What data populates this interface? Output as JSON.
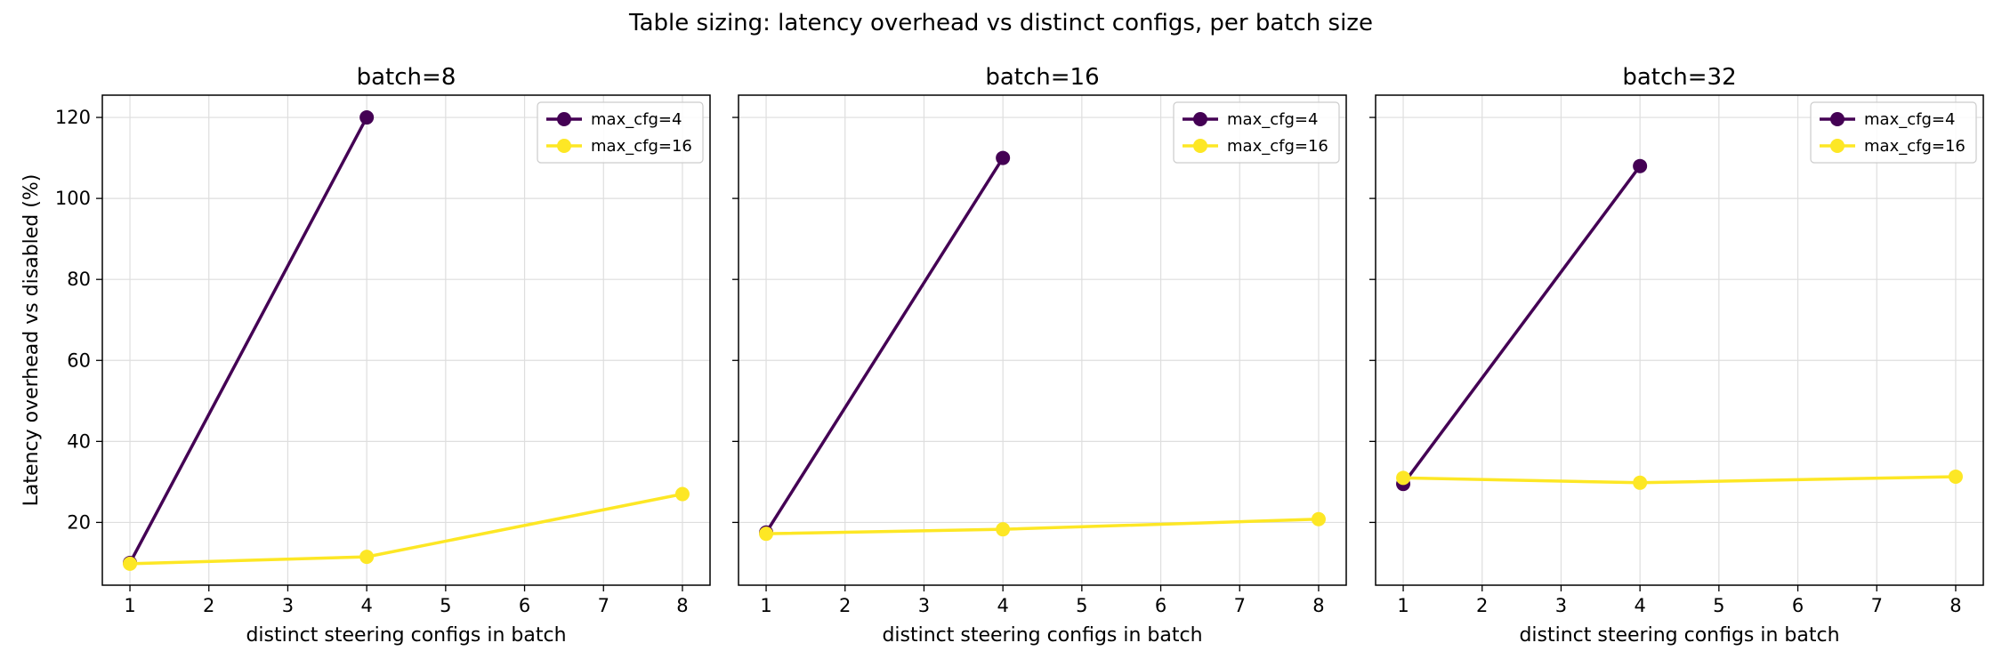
{
  "title": "Table sizing: latency overhead vs distinct configs, per batch size",
  "chart_data": [
    {
      "type": "line",
      "title": "batch=8",
      "xlabel": "distinct steering configs in batch",
      "ylabel": "Latency overhead vs disabled (%)",
      "xlim": [
        0.65,
        8.35
      ],
      "ylim": [
        4.5,
        125.5
      ],
      "xticks": [
        1,
        2,
        3,
        4,
        5,
        6,
        7,
        8
      ],
      "yticks": [
        20,
        40,
        60,
        80,
        100,
        120
      ],
      "grid": true,
      "legend_position": "top-right",
      "series": [
        {
          "name": "max_cfg=4",
          "color": "#440154",
          "x": [
            1,
            4
          ],
          "y": [
            10.0,
            120.0
          ]
        },
        {
          "name": "max_cfg=16",
          "color": "#fde725",
          "x": [
            1,
            4,
            8
          ],
          "y": [
            9.8,
            11.5,
            27.0
          ]
        }
      ]
    },
    {
      "type": "line",
      "title": "batch=16",
      "xlabel": "distinct steering configs in batch",
      "ylabel": "",
      "xlim": [
        0.65,
        8.35
      ],
      "ylim": [
        4.5,
        125.5
      ],
      "xticks": [
        1,
        2,
        3,
        4,
        5,
        6,
        7,
        8
      ],
      "yticks": [
        20,
        40,
        60,
        80,
        100,
        120
      ],
      "grid": true,
      "legend_position": "top-right",
      "series": [
        {
          "name": "max_cfg=4",
          "color": "#440154",
          "x": [
            1,
            4
          ],
          "y": [
            17.5,
            110.0
          ]
        },
        {
          "name": "max_cfg=16",
          "color": "#fde725",
          "x": [
            1,
            4,
            8
          ],
          "y": [
            17.2,
            18.3,
            20.8
          ]
        }
      ]
    },
    {
      "type": "line",
      "title": "batch=32",
      "xlabel": "distinct steering configs in batch",
      "ylabel": "",
      "xlim": [
        0.65,
        8.35
      ],
      "ylim": [
        4.5,
        125.5
      ],
      "xticks": [
        1,
        2,
        3,
        4,
        5,
        6,
        7,
        8
      ],
      "yticks": [
        20,
        40,
        60,
        80,
        100,
        120
      ],
      "grid": true,
      "legend_position": "top-right",
      "series": [
        {
          "name": "max_cfg=4",
          "color": "#440154",
          "x": [
            1,
            4
          ],
          "y": [
            29.5,
            108.0
          ]
        },
        {
          "name": "max_cfg=16",
          "color": "#fde725",
          "x": [
            1,
            4,
            8
          ],
          "y": [
            31.0,
            29.8,
            31.3
          ]
        }
      ]
    }
  ]
}
